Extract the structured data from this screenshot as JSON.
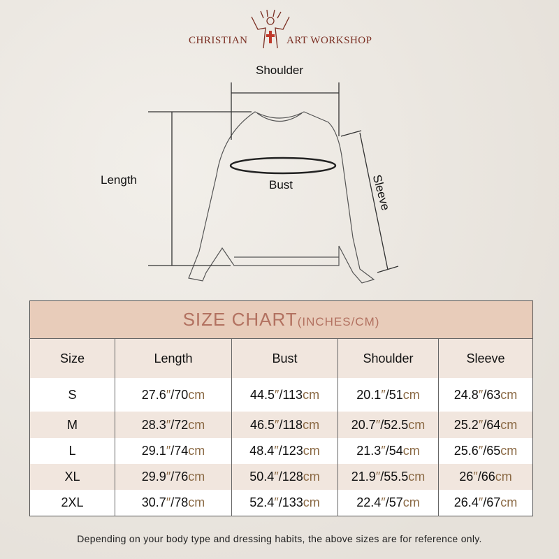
{
  "brand": {
    "left": "CHRISTIAN",
    "right": "ART WORKSHOP"
  },
  "diagram": {
    "shoulder": "Shoulder",
    "length": "Length",
    "bust": "Bust",
    "sleeve": "Sleeve"
  },
  "table": {
    "title": "SIZE CHART",
    "title_units": "(INCHES/CM)",
    "headers": [
      "Size",
      "Length",
      "Bust",
      "Shoulder",
      "Sleeve"
    ],
    "rows": [
      {
        "size": "S",
        "length": "27.6\"/70cm",
        "bust": "44.5\"/113cm",
        "shoulder": "20.1\"/51cm",
        "sleeve": "24.8\"/63cm"
      },
      {
        "size": "M",
        "length": "28.3\"/72cm",
        "bust": "46.5\"/118cm",
        "shoulder": "20.7\"/52.5cm",
        "sleeve": "25.2\"/64cm"
      },
      {
        "size": "L",
        "length": "29.1\"/74cm",
        "bust": "48.4\"/123cm",
        "shoulder": "21.3\"/54cm",
        "sleeve": "25.6\"/65cm"
      },
      {
        "size": "XL",
        "length": "29.9\"/76cm",
        "bust": "50.4\"/128cm",
        "shoulder": "21.9\"/55.5cm",
        "sleeve": "26\"/66cm"
      },
      {
        "size": "2XL",
        "length": "30.7\"/78cm",
        "bust": "52.4\"/133cm",
        "shoulder": "22.4\"/57cm",
        "sleeve": "26.4\"/67cm"
      }
    ]
  },
  "note": "Depending on your body type and dressing habits, the above sizes are for reference only.",
  "colors": {
    "title_bg": "#e8ccba",
    "title_text": "#b27160",
    "unit": "#8b6a45",
    "brand": "#7a2e22"
  }
}
